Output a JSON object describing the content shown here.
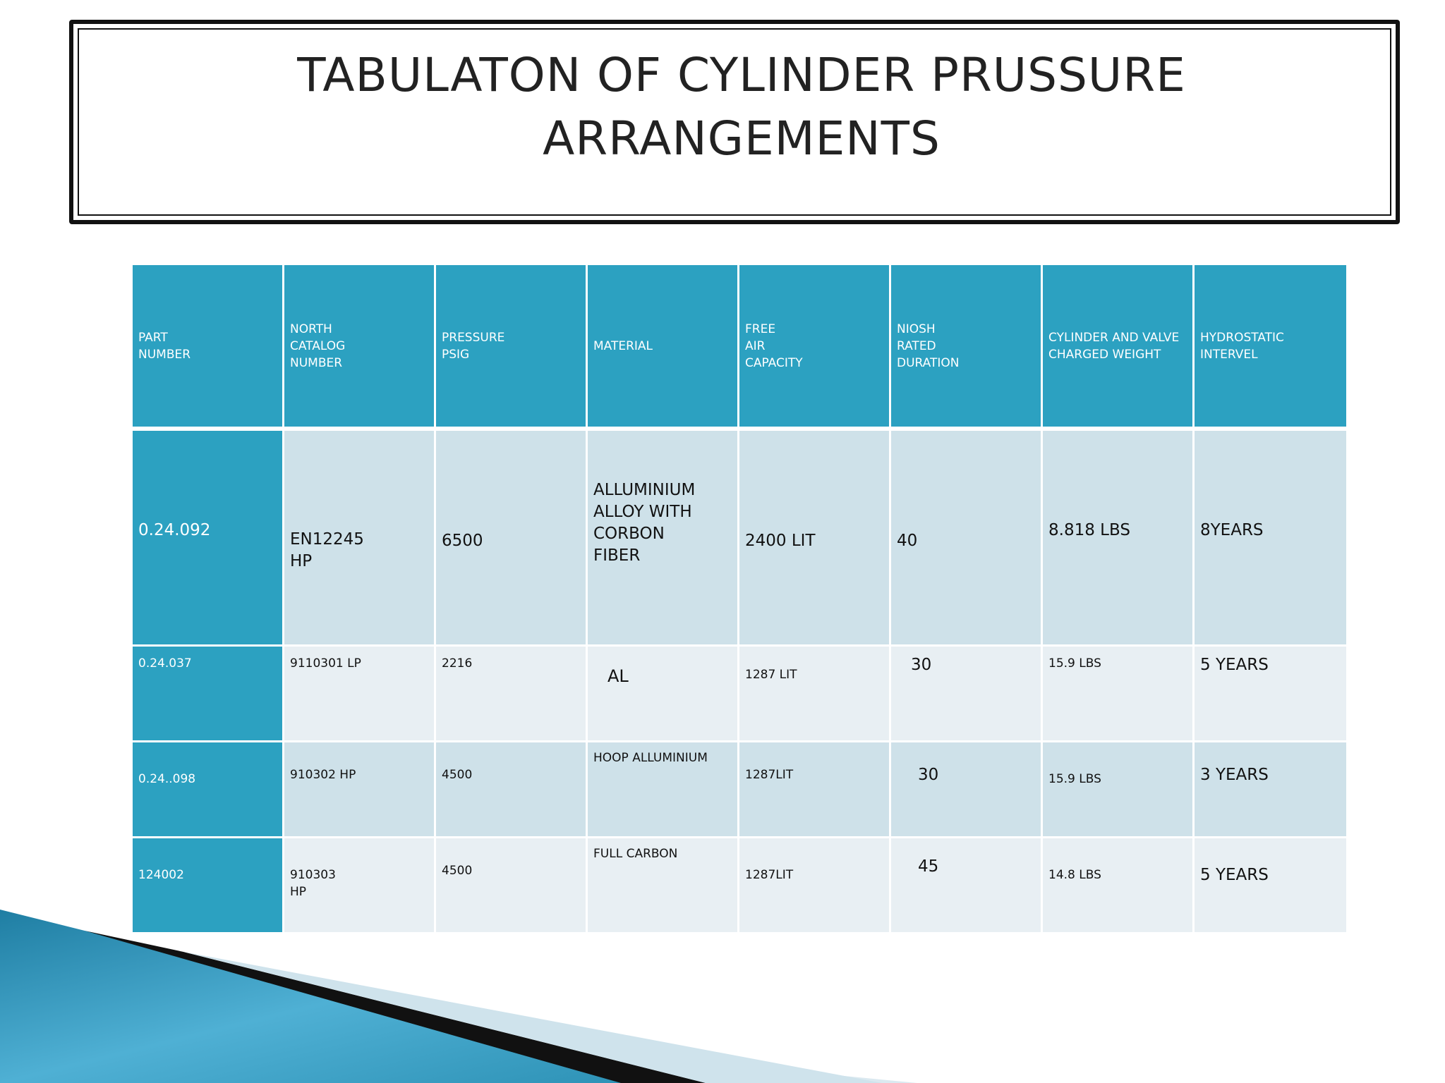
{
  "title": {
    "line1": "TABULATON OF CYLINDER PRUSSURE",
    "line2": "ARRANGEMENTS"
  },
  "table": {
    "headers": [
      "PART\nNUMBER",
      "NORTH\nCATALOG\nNUMBER",
      "PRESSURE\nPSIG",
      "MATERIAL",
      "FREE\nAIR\nCAPACITY",
      "NIOSH\nRATED\nDURATION",
      "CYLINDER AND VALVE\nCHARGED WEIGHT",
      "HYDROSTATIC\nINTERVEL"
    ],
    "rows": [
      [
        "0.24.092",
        "EN12245\nHP",
        "6500",
        "ALLUMINIUM\nALLOY     WITH\nCORBON\nFIBER",
        "2400 LIT",
        "40",
        "8.818         LBS",
        "8YEARS"
      ],
      [
        "0.24.037",
        "9110301    LP",
        "2216",
        "AL",
        "1287 LIT",
        "30",
        "15.9 LBS",
        "5 YEARS"
      ],
      [
        "0.24..098",
        "910302 HP",
        "4500",
        "HOOP ALLUMINIUM",
        "1287LIT",
        "30",
        "15.9 LBS",
        "3 YEARS"
      ],
      [
        "124002",
        "910303\nHP",
        "4500",
        "FULL CARBON",
        "1287LIT",
        "45",
        "14.8 LBS",
        "5 YEARS"
      ]
    ]
  },
  "colors": {
    "header_bg": "#2ca1c1",
    "row_dark": "#cee1e9",
    "row_light": "#e8eff3",
    "swoosh_blue": "#2a8fb3"
  },
  "decor": {
    "swoosh": "swoosh-decoration"
  }
}
